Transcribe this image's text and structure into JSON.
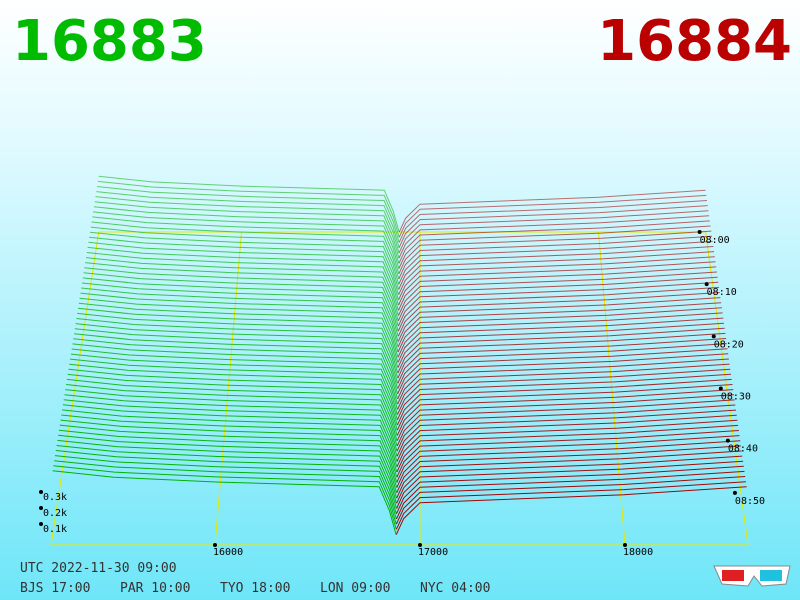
{
  "header": {
    "bid": 16883,
    "ask": 16884
  },
  "chart_data": {
    "type": "depth3d",
    "price_axis": {
      "lim": [
        15200,
        18600
      ],
      "ticks": [
        16000,
        17000,
        18000
      ]
    },
    "volume_axis": {
      "ticks": [
        {
          "value": 0.1,
          "label": "0.1k"
        },
        {
          "value": 0.2,
          "label": "0.2k"
        },
        {
          "value": 0.3,
          "label": "0.3k"
        }
      ]
    },
    "time_axis": {
      "lim": [
        0,
        60
      ],
      "ticks": [
        {
          "value": 0,
          "label": "08:00"
        },
        {
          "value": 10,
          "label": "08:10"
        },
        {
          "value": 20,
          "label": "08:20"
        },
        {
          "value": 30,
          "label": "08:30"
        },
        {
          "value": 40,
          "label": "08:40"
        },
        {
          "value": 50,
          "label": "08:50"
        }
      ]
    },
    "snapshots": [
      0,
      1,
      2,
      3,
      4,
      5,
      6,
      7,
      8,
      9,
      10,
      11,
      12,
      13,
      14,
      15,
      16,
      17,
      18,
      19,
      20,
      21,
      22,
      23,
      24,
      25,
      26,
      27,
      28,
      29,
      30,
      31,
      32,
      33,
      34,
      35,
      36,
      37,
      38,
      39,
      40,
      41,
      42,
      43,
      44,
      45,
      46,
      47,
      48,
      49,
      50,
      51,
      52,
      53,
      54,
      55,
      56,
      57,
      58
    ],
    "bids": {
      "color": "#00b000",
      "price": [
        16883,
        16850,
        16800,
        16000,
        15500,
        15200
      ],
      "volume": [
        0,
        0.15,
        0.3,
        0.33,
        0.36,
        0.4
      ]
    },
    "asks": {
      "color": "#a00000",
      "price": [
        16884,
        16920,
        17000,
        18000,
        18600
      ],
      "volume": [
        0,
        0.1,
        0.2,
        0.25,
        0.3
      ]
    },
    "frame_color": "#e8e800"
  },
  "footer": {
    "utc": "UTC 2022-11-30 09:00",
    "zones": [
      "BJS 17:00",
      "PAR 10:00",
      "TYO 18:00",
      "LON 09:00",
      "NYC 04:00"
    ]
  }
}
